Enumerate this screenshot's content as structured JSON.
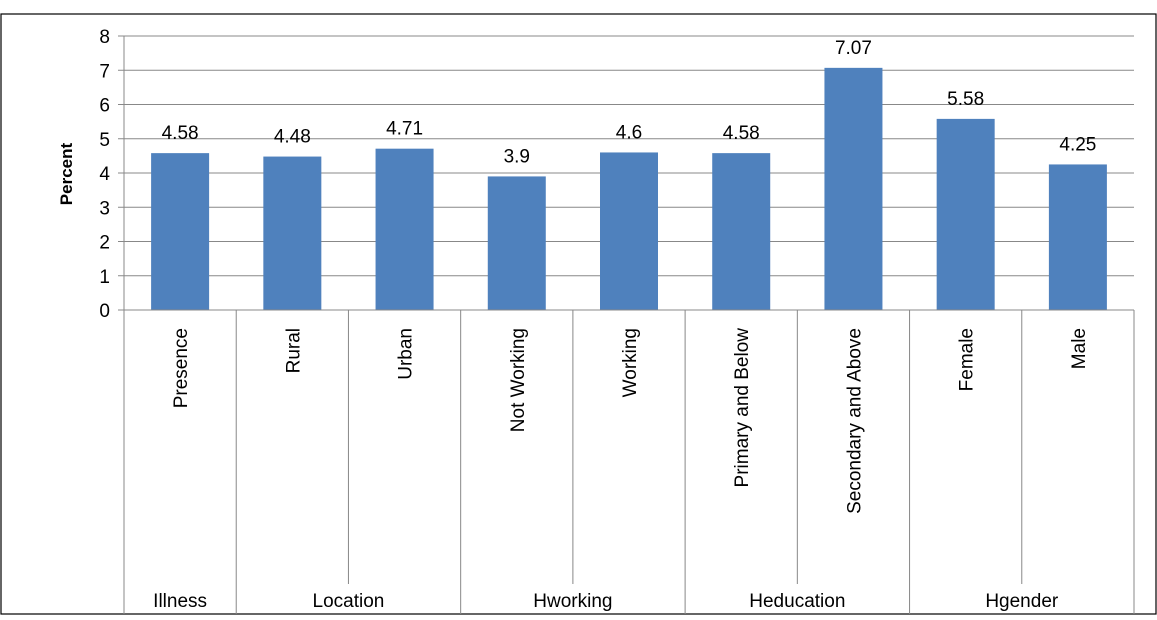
{
  "chart_data": {
    "type": "bar",
    "title": "",
    "xlabel": "",
    "ylabel": "Percent",
    "ylim": [
      0,
      8
    ],
    "yticks": [
      "0",
      "1",
      "2",
      "3",
      "4",
      "5",
      "6",
      "7",
      "8"
    ],
    "grid": true,
    "legend": "none",
    "bar_color": "#4f81bd",
    "categories": [
      "Presence",
      "Rural",
      "Urban",
      "Not Working",
      "Working",
      "Primary and Below",
      "Secondary and Above",
      "Female",
      "Male"
    ],
    "values": [
      4.58,
      4.48,
      4.71,
      3.9,
      4.6,
      4.58,
      7.07,
      5.58,
      4.25
    ],
    "data_labels": [
      "4.58",
      "4.48",
      "4.71",
      "3.9",
      "4.6",
      "4.58",
      "7.07",
      "5.58",
      "4.25"
    ],
    "groups": [
      {
        "label": "Illness",
        "span": 1
      },
      {
        "label": "Location",
        "span": 2
      },
      {
        "label": "Hworking",
        "span": 2
      },
      {
        "label": "Heducation",
        "span": 2
      },
      {
        "label": "Hgender",
        "span": 2
      }
    ]
  }
}
